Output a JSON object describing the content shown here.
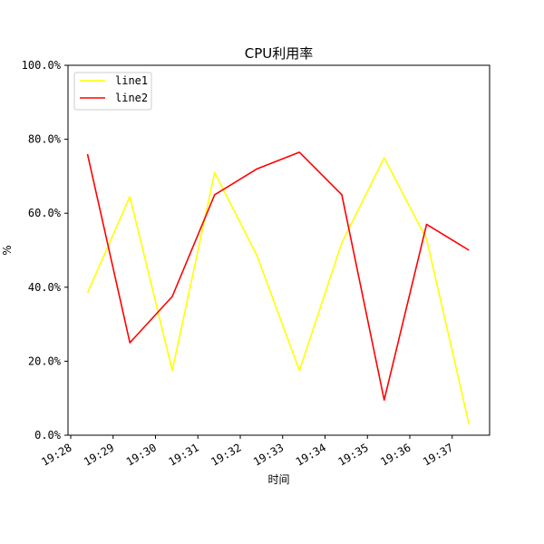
{
  "chart_data": {
    "type": "line",
    "title": "CPU利用率",
    "xlabel": "时间",
    "ylabel": "%",
    "x": [
      "19:28:24",
      "19:29:24",
      "19:30:24",
      "19:31:24",
      "19:32:24",
      "19:33:24",
      "19:34:24",
      "19:35:24",
      "19:36:24",
      "19:37:24"
    ],
    "x_ticks": [
      "19:28",
      "19:29",
      "19:30",
      "19:31",
      "19:32",
      "19:33",
      "19:34",
      "19:35",
      "19:36",
      "19:37"
    ],
    "y_ticks": [
      "0.0%",
      "20.0%",
      "40.0%",
      "60.0%",
      "80.0%",
      "100.0%"
    ],
    "ylim": [
      0,
      100
    ],
    "series": [
      {
        "name": "line1",
        "color": "#ffff00",
        "values": [
          38.5,
          64.5,
          17.5,
          71,
          48.5,
          17.5,
          52,
          75,
          53,
          3
        ]
      },
      {
        "name": "line2",
        "color": "#ff0000",
        "values": [
          76,
          25,
          37.5,
          65,
          72,
          76.5,
          65,
          9.5,
          57,
          50
        ]
      }
    ],
    "legend_position": "top-left",
    "grid": false
  }
}
